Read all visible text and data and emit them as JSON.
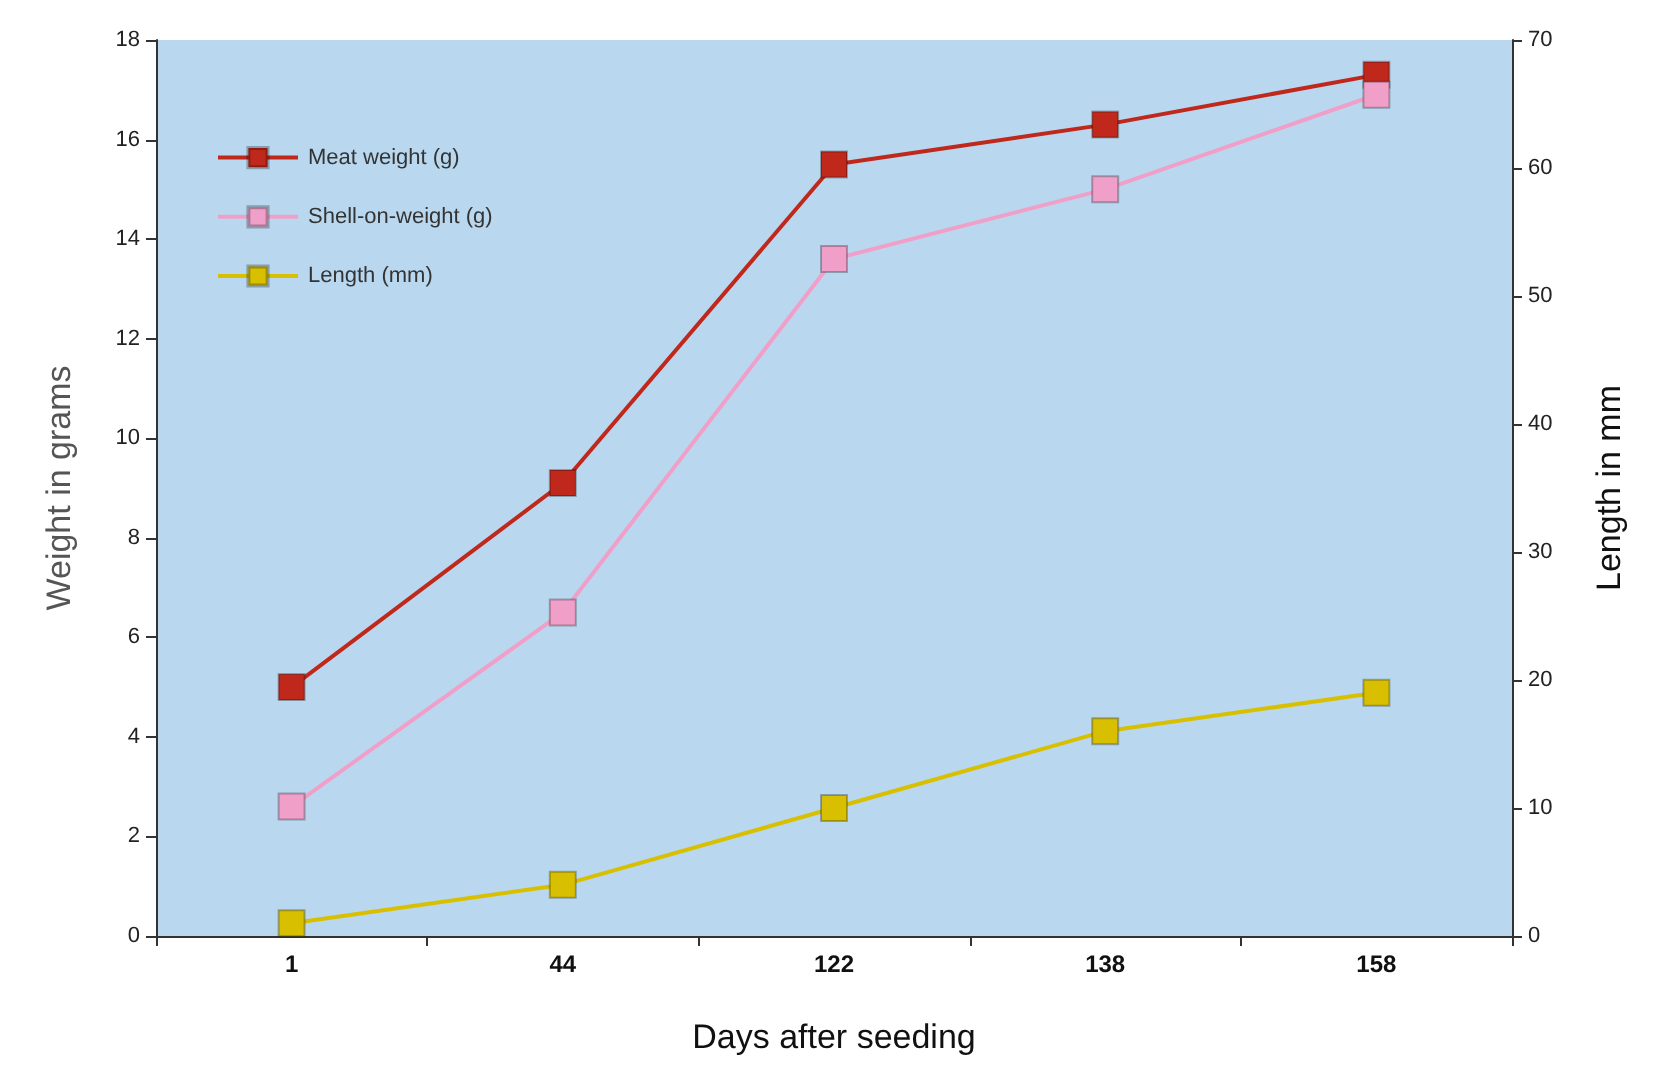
{
  "chart_data": {
    "type": "line",
    "xlabel": "Days after seeding",
    "ylabel": "Weight in grams",
    "y2label": "Length in mm",
    "categories": [
      "1",
      "44",
      "122",
      "138",
      "158"
    ],
    "series": [
      {
        "name": "Meat weight (g)",
        "color": "#c0281c",
        "values": [
          5.0,
          9.1,
          15.5,
          16.3,
          17.3
        ]
      },
      {
        "name": "Shell-on-weight (g)",
        "color": "#f0a0c8",
        "values": [
          2.6,
          6.5,
          13.6,
          15.0,
          16.9
        ]
      },
      {
        "name": "Length (mm)",
        "color": "#d8c000",
        "axis": "y2",
        "values": [
          1,
          4,
          10,
          16,
          19
        ]
      }
    ],
    "ylim": [
      0,
      18
    ],
    "yticks": [
      0,
      2,
      4,
      6,
      8,
      10,
      12,
      14,
      16,
      18
    ],
    "y2lim": [
      0,
      70
    ],
    "y2ticks": [
      0,
      10,
      20,
      30,
      40,
      50,
      60,
      70
    ],
    "grid": false,
    "legend": "top left",
    "marker": "square",
    "line_style": "solid"
  }
}
